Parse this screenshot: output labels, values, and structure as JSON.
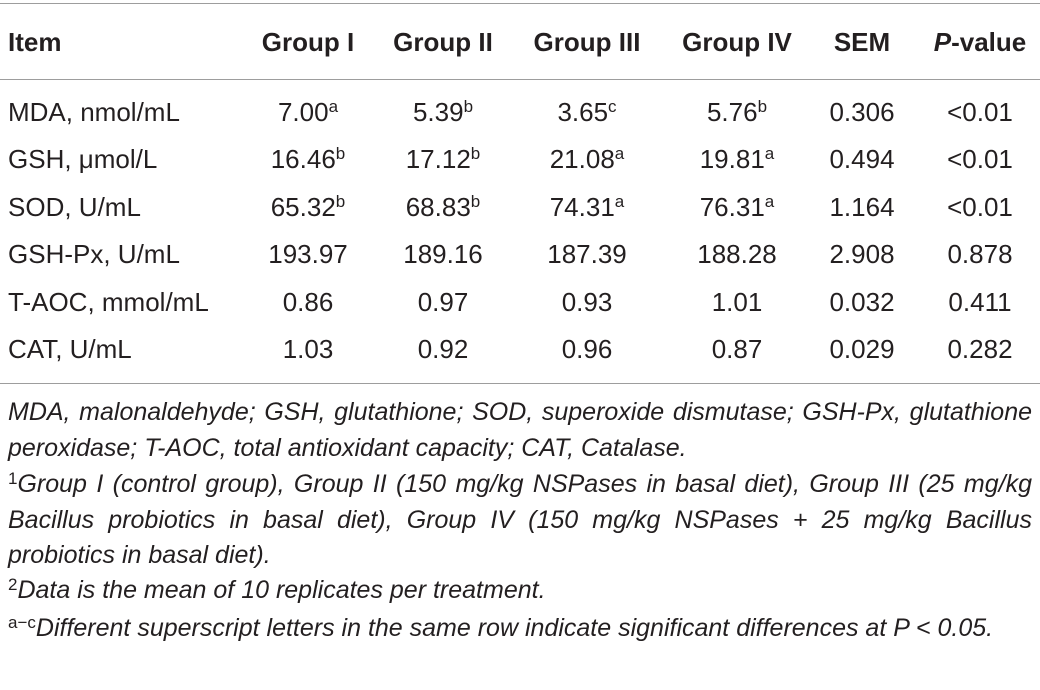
{
  "table": {
    "header": [
      "Item",
      "Group I",
      "Group II",
      "Group III",
      "Group IV",
      "SEM",
      {
        "italic": "P",
        "rest": "-value"
      }
    ],
    "rows": [
      [
        "MDA, nmol/mL",
        {
          "value": "7.00",
          "sup": "a"
        },
        {
          "value": "5.39",
          "sup": "b"
        },
        {
          "value": "3.65",
          "sup": "c"
        },
        {
          "value": "5.76",
          "sup": "b"
        },
        "0.306",
        "<0.01"
      ],
      [
        "GSH, μmol/L",
        {
          "value": "16.46",
          "sup": "b"
        },
        {
          "value": "17.12",
          "sup": "b"
        },
        {
          "value": "21.08",
          "sup": "a"
        },
        {
          "value": "19.81",
          "sup": "a"
        },
        "0.494",
        "<0.01"
      ],
      [
        "SOD, U/mL",
        {
          "value": "65.32",
          "sup": "b"
        },
        {
          "value": "68.83",
          "sup": "b"
        },
        {
          "value": "74.31",
          "sup": "a"
        },
        {
          "value": "76.31",
          "sup": "a"
        },
        "1.164",
        "<0.01"
      ],
      [
        "GSH-Px, U/mL",
        "193.97",
        "189.16",
        "187.39",
        "188.28",
        "2.908",
        "0.878"
      ],
      [
        "T-AOC, mmol/mL",
        "0.86",
        "0.97",
        "0.93",
        "1.01",
        "0.032",
        "0.411"
      ],
      [
        "CAT, U/mL",
        "1.03",
        "0.92",
        "0.96",
        "0.87",
        "0.029",
        "0.282"
      ]
    ]
  },
  "footnotes": [
    {
      "text": "MDA, malonaldehyde; GSH, glutathione; SOD, superoxide dismutase; GSH-Px, glutathione peroxidase; T-AOC, total antioxidant capacity; CAT, Catalase."
    },
    {
      "mark": "1",
      "text": "Group I (control group), Group II (150 mg/kg NSPases in basal diet), Group III (25 mg/kg Bacillus probiotics in basal diet), Group IV (150 mg/kg NSPases + 25 mg/kg Bacillus probiotics in basal diet)."
    },
    {
      "mark": "2",
      "text": "Data is the mean of 10 replicates per treatment."
    },
    {
      "mark": "a−c",
      "text": "Different superscript letters in the same row indicate significant differences at P < 0.05."
    }
  ]
}
